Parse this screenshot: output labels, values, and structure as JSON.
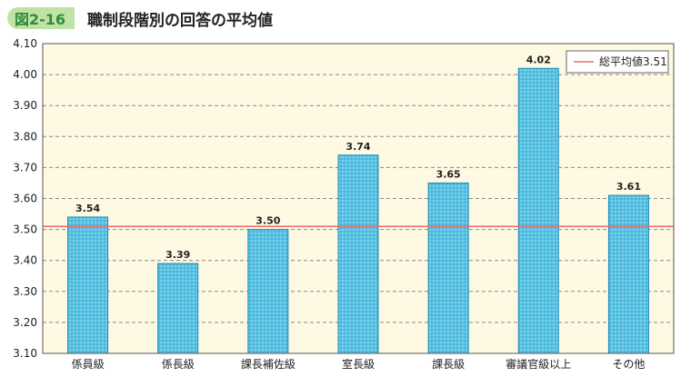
{
  "header": {
    "figure_label": "図2-16",
    "title": "職制段階別の回答の平均値"
  },
  "chart_data": {
    "type": "bar",
    "categories": [
      "係員級",
      "係長級",
      "課長補佐級",
      "室長級",
      "課長級",
      "審議官級以上",
      "その他"
    ],
    "values": [
      3.54,
      3.39,
      3.5,
      3.74,
      3.65,
      4.02,
      3.61
    ],
    "value_labels": [
      "3.54",
      "3.39",
      "3.50",
      "3.74",
      "3.65",
      "4.02",
      "3.61"
    ],
    "ylim": [
      3.1,
      4.1
    ],
    "yticks": [
      "3.10",
      "3.20",
      "3.30",
      "3.40",
      "3.50",
      "3.60",
      "3.70",
      "3.80",
      "3.90",
      "4.00",
      "4.10"
    ],
    "reference_line": {
      "name": "総平均値3.51",
      "value": 3.51
    },
    "grid": true,
    "legend_position": "top-right",
    "colors": {
      "plot_background": "#fdf9e3",
      "bar_fill": "#56c1e2",
      "bar_stroke": "#1b8ab4",
      "reference_line": "#ea6c6c",
      "grid": "#8a8a8a"
    }
  }
}
